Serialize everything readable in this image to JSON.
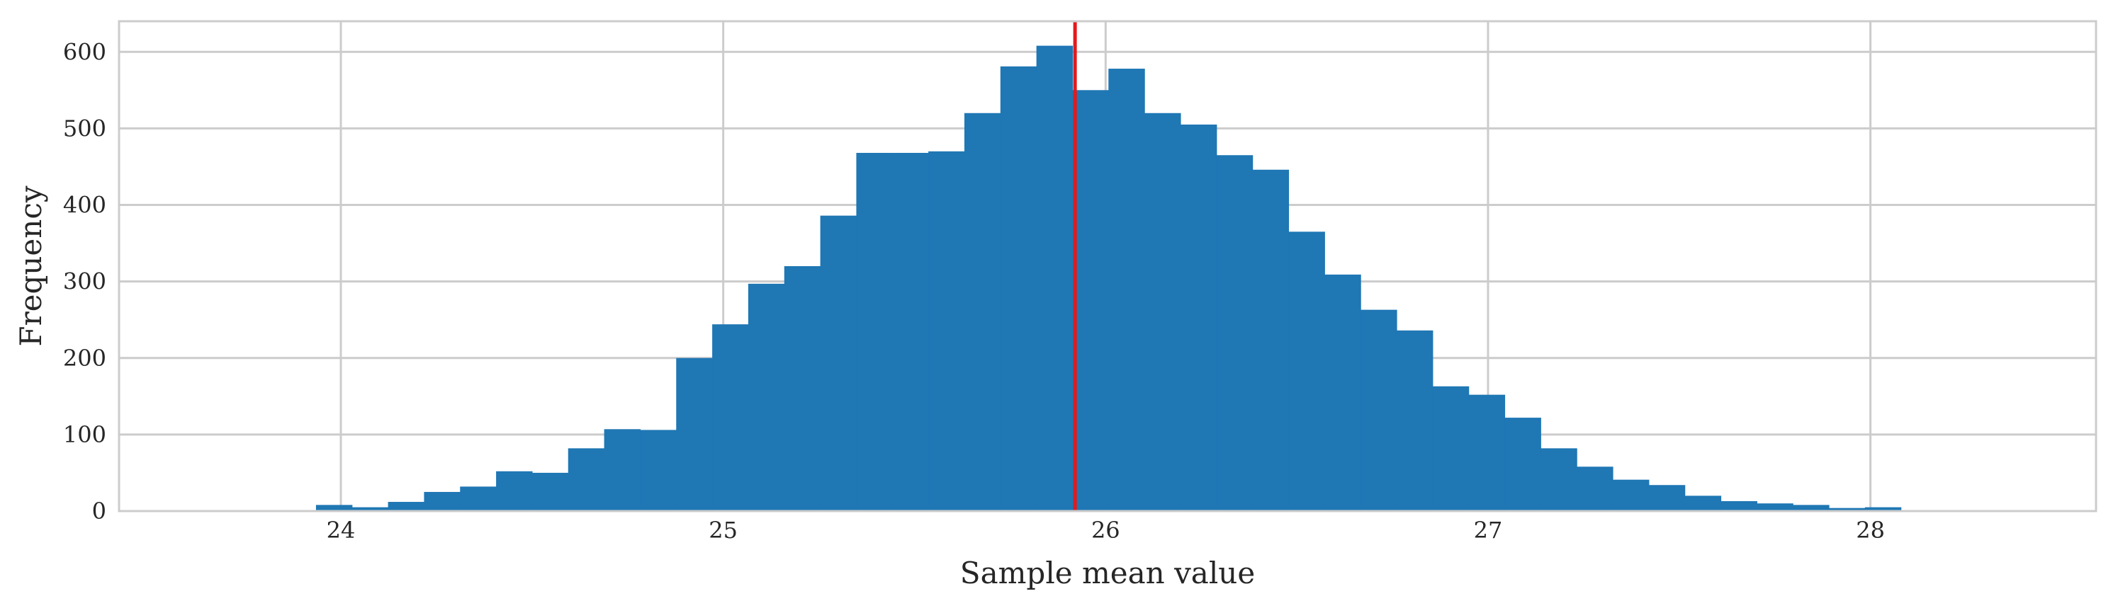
{
  "chart_data": {
    "type": "histogram",
    "title": "",
    "xlabel": "Sample mean value",
    "ylabel": "Frequency",
    "xlim": [
      23.42,
      28.59
    ],
    "ylim": [
      0,
      640
    ],
    "xticks": [
      24,
      25,
      26,
      27,
      28
    ],
    "yticks": [
      0,
      100,
      200,
      300,
      400,
      500,
      600
    ],
    "grid": true,
    "bin_start": 23.935,
    "bin_width": 0.0942,
    "values": [
      8,
      5,
      12,
      25,
      32,
      52,
      50,
      82,
      107,
      106,
      200,
      244,
      297,
      320,
      386,
      468,
      468,
      470,
      520,
      581,
      608,
      550,
      578,
      520,
      505,
      465,
      446,
      365,
      309,
      263,
      236,
      163,
      152,
      122,
      82,
      58,
      41,
      34,
      20,
      13,
      10,
      8,
      4,
      5
    ],
    "bar_color": "#1f77b4",
    "reference_line": {
      "x": 25.92,
      "color": "#e31a1c"
    }
  }
}
